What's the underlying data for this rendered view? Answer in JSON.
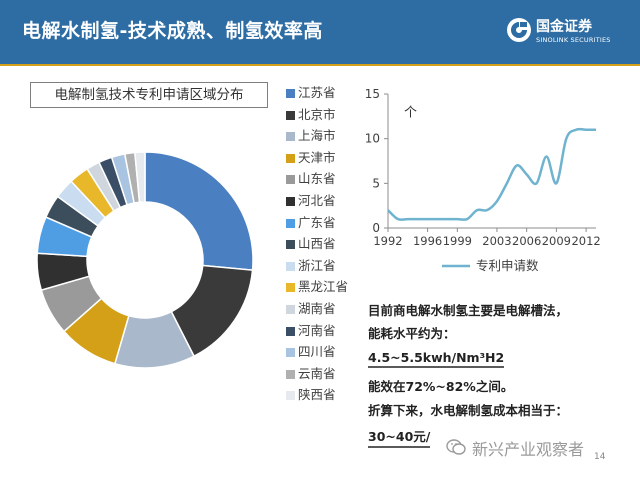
{
  "header": {
    "title": "电解水制氢-技术成熟、制氢效率高",
    "logo_cn": "国金证券",
    "logo_en": "SINOLINK SECURITIES"
  },
  "colors": {
    "header_bg": "#2d6da3",
    "accent": "#d4a017",
    "donut_blue": "#4a7fc1",
    "line_teal": "#6fb3cf"
  },
  "donut_chart": {
    "title": "电解制氢技术专利申请区域分布",
    "chart_data": {
      "type": "pie",
      "title": "电解制氢技术专利申请区域分布",
      "categories": [
        "江苏省",
        "北京市",
        "上海市",
        "天津市",
        "山东省",
        "河北省",
        "广东省",
        "山西省",
        "浙江省",
        "黑龙江省",
        "湖南省",
        "河南省",
        "四川省",
        "云南省",
        "陕西省"
      ],
      "values": [
        26.5,
        16,
        12,
        9,
        7,
        5.5,
        5.5,
        3.5,
        3,
        3,
        2,
        2,
        2,
        1.5,
        1.5
      ],
      "colors": [
        "#4a7fc1",
        "#3a3a3a",
        "#a9b8cb",
        "#d4a017",
        "#9a9a9a",
        "#303030",
        "#4f9ee3",
        "#3c4d5c",
        "#c9dcf0",
        "#e8b82a",
        "#d0d6dd",
        "#3a4f66",
        "#a9c4e0",
        "#b0b0b0",
        "#e6e9ee"
      ],
      "legend_position": "right"
    }
  },
  "line_chart": {
    "chart_data": {
      "type": "line",
      "x": [
        1992,
        1993,
        1994,
        1995,
        1996,
        1997,
        1998,
        1999,
        2000,
        2001,
        2002,
        2003,
        2004,
        2005,
        2006,
        2007,
        2008,
        2009,
        2010,
        2011,
        2012,
        2013
      ],
      "series": [
        {
          "name": "专利申请数",
          "values": [
            2,
            1,
            1,
            1,
            1,
            1,
            1,
            1,
            1,
            2,
            2,
            3,
            5,
            7,
            6,
            5,
            8,
            5,
            10,
            11,
            11,
            11
          ]
        }
      ],
      "x_ticks": [
        1992,
        1996,
        1999,
        2003,
        2006,
        2009,
        2012
      ],
      "y_ticks": [
        0,
        5,
        10,
        15
      ],
      "ylim": [
        0,
        15
      ],
      "ylabel": "个",
      "legend_position": "bottom"
    }
  },
  "notes": {
    "line1": "目前商电解水制氢主要是电解槽法，",
    "line2": "能耗水平约为：",
    "line3": "4.5~5.5kwh/Nm³H2",
    "line4": "能效在72%~82%之间。",
    "line5": "折算下来，水电解制氢成本相当于：",
    "line6": "30~40元/"
  },
  "watermark": "新兴产业观察者",
  "page_number": "14"
}
